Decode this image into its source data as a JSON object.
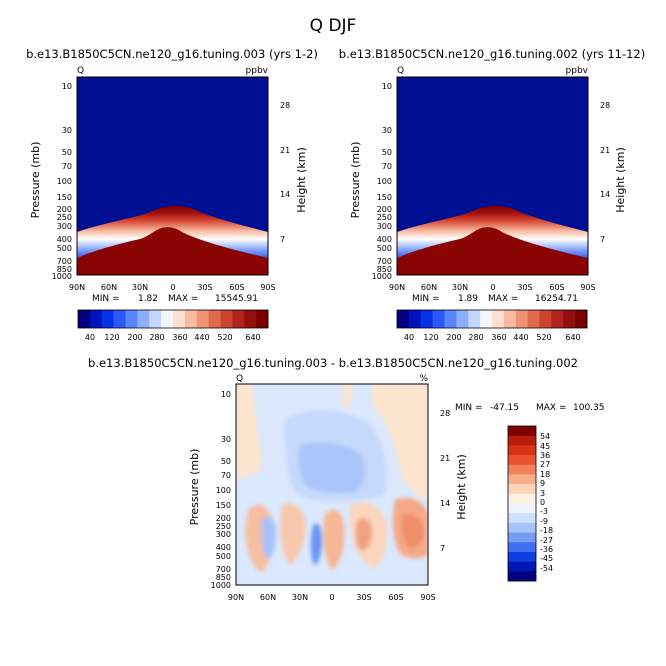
{
  "figure": {
    "title": "Q DJF"
  },
  "chart_data": [
    {
      "type": "heatmap",
      "title": "b.e13.B1850C5CN.ne120_g16.tuning.003 (yrs 1-2)",
      "left_label": "Q",
      "right_label": "ppbv",
      "ylabel": "Pressure (mb)",
      "ylabel_right": "Height (km)",
      "x_ticks": [
        "90N",
        "60N",
        "30N",
        "0",
        "30S",
        "60S",
        "90S"
      ],
      "y_ticks": [
        "10",
        "30",
        "50",
        "70",
        "100",
        "150",
        "200",
        "250",
        "300",
        "400",
        "500",
        "700",
        "850",
        "1000"
      ],
      "y_ticks_right": [
        "28",
        "21",
        "14",
        "7"
      ],
      "stats": {
        "min_label": "MIN =",
        "min": "1.82",
        "max_label": "MAX = ",
        "max": "15545.91"
      },
      "colorbar": [
        "40",
        "120",
        "200",
        "280",
        "360",
        "440",
        "520",
        "640"
      ],
      "ylim": [
        1000,
        10
      ],
      "xlim": [
        90,
        -90
      ],
      "y_scale": "log"
    },
    {
      "type": "heatmap",
      "title": "b.e13.B1850C5CN.ne120_g16.tuning.002 (yrs 11-12)",
      "left_label": "Q",
      "right_label": "ppbv",
      "ylabel": "Pressure (mb)",
      "ylabel_right": "Height (km)",
      "x_ticks": [
        "90N",
        "60N",
        "30N",
        "0",
        "30S",
        "60S",
        "90S"
      ],
      "y_ticks": [
        "10",
        "30",
        "50",
        "70",
        "100",
        "150",
        "200",
        "250",
        "300",
        "400",
        "500",
        "700",
        "850",
        "1000"
      ],
      "y_ticks_right": [
        "28",
        "21",
        "14",
        "7"
      ],
      "stats": {
        "min_label": "MIN =",
        "min": "1.89",
        "max_label": "MAX = ",
        "max": "16254.71"
      },
      "colorbar": [
        "40",
        "120",
        "200",
        "280",
        "360",
        "440",
        "520",
        "640"
      ],
      "ylim": [
        1000,
        10
      ],
      "xlim": [
        90,
        -90
      ],
      "y_scale": "log"
    },
    {
      "type": "heatmap",
      "title": "b.e13.B1850C5CN.ne120_g16.tuning.003 - b.e13.B1850C5CN.ne120_g16.tuning.002",
      "left_label": "Q",
      "right_label": "%",
      "ylabel": "Pressure (mb)",
      "ylabel_right": "Height (km)",
      "x_ticks": [
        "90N",
        "60N",
        "30N",
        "0",
        "30S",
        "60S",
        "90S"
      ],
      "y_ticks": [
        "10",
        "30",
        "50",
        "70",
        "100",
        "150",
        "200",
        "250",
        "300",
        "400",
        "500",
        "700",
        "850",
        "1000"
      ],
      "y_ticks_right": [
        "28",
        "21",
        "14",
        "7"
      ],
      "stats": {
        "min_label": "MIN = ",
        "min": "-47.15",
        "max_label": "MAX = ",
        "max": "100.35"
      },
      "colorbar": [
        "54",
        "45",
        "36",
        "27",
        "18",
        "9",
        "3",
        "0",
        "-3",
        "-9",
        "-18",
        "-27",
        "-36",
        "-45",
        "-54"
      ],
      "ylim": [
        1000,
        10
      ],
      "xlim": [
        90,
        -90
      ],
      "y_scale": "log"
    }
  ],
  "colors": {
    "abs_levels": [
      "#000080",
      "#0013bb",
      "#0532e6",
      "#2a59f5",
      "#5a84f9",
      "#8daefb",
      "#c3d6fd",
      "#f4f6ff",
      "#fde0d0",
      "#f8bba1",
      "#ef9373",
      "#e06a4d",
      "#cc4431",
      "#b3231d",
      "#94100f",
      "#7a0000"
    ],
    "diff_levels": [
      "#000080",
      "#0019b5",
      "#0d3fe0",
      "#3f6ff0",
      "#769cf6",
      "#a6c4fa",
      "#cfe0fd",
      "#eef4ff",
      "#fff1e2",
      "#fcd6bb",
      "#f8ae8a",
      "#f28059",
      "#e9532f",
      "#d83218",
      "#b71d0d",
      "#800000"
    ]
  }
}
